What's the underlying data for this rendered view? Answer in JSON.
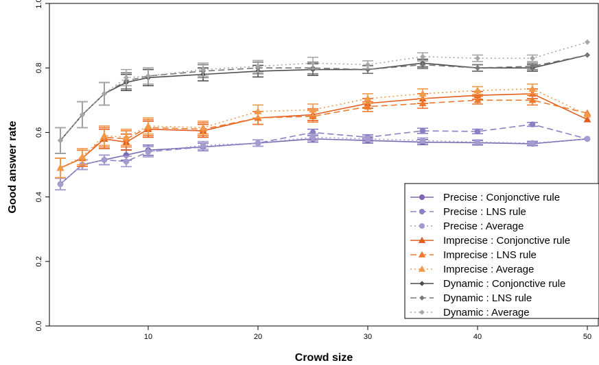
{
  "chart_data": {
    "type": "line",
    "title": "",
    "xlabel": "Crowd size",
    "ylabel": "Good answer rate",
    "xlim": [
      1,
      51
    ],
    "ylim": [
      0,
      1
    ],
    "x_ticks": [
      10,
      20,
      30,
      40,
      50
    ],
    "y_ticks": [
      0.0,
      0.2,
      0.4,
      0.6,
      0.8,
      1.0
    ],
    "y_tick_labels": [
      "0.0",
      "0.2",
      "0.4",
      "0.6",
      "0.8",
      "1.0"
    ],
    "grid": false,
    "legend_position": "bottom-right",
    "x": [
      2,
      4,
      6,
      8,
      10,
      15,
      20,
      25,
      30,
      35,
      40,
      45,
      50
    ],
    "series": [
      {
        "name": "Precise : Conjonctive rule",
        "color": "#7b68b0",
        "dash": "solid",
        "marker": "circle",
        "values": [
          0.44,
          0.5,
          0.515,
          0.53,
          0.545,
          0.555,
          0.567,
          0.58,
          0.575,
          0.57,
          0.568,
          0.565,
          0.58
        ],
        "errors": [
          0.018,
          0.015,
          0.015,
          0.016,
          0.016,
          0.012,
          0.01,
          0.01,
          0.008,
          0.008,
          0.007,
          0.006,
          0.0
        ]
      },
      {
        "name": "Precise : LNS rule",
        "color": "#8a80c4",
        "dash": "dashed",
        "marker": "circle",
        "values": [
          0.44,
          0.5,
          0.515,
          0.51,
          0.54,
          0.555,
          0.567,
          0.6,
          0.585,
          0.605,
          0.603,
          0.625,
          0.58
        ],
        "errors": [
          0.018,
          0.015,
          0.015,
          0.016,
          0.016,
          0.012,
          0.01,
          0.01,
          0.008,
          0.008,
          0.007,
          0.006,
          0.0
        ]
      },
      {
        "name": "Precise : Average",
        "color": "#a49ccf",
        "dash": "dotted",
        "marker": "circle",
        "values": [
          0.44,
          0.5,
          0.515,
          0.51,
          0.54,
          0.56,
          0.567,
          0.585,
          0.58,
          0.575,
          0.57,
          0.567,
          0.58
        ],
        "errors": [
          0.018,
          0.015,
          0.015,
          0.016,
          0.016,
          0.012,
          0.01,
          0.01,
          0.008,
          0.008,
          0.007,
          0.006,
          0.0
        ]
      },
      {
        "name": "Imprecise : Conjonctive rule",
        "color": "#e35d1e",
        "dash": "solid",
        "marker": "triangle",
        "values": [
          0.49,
          0.52,
          0.58,
          0.57,
          0.61,
          0.605,
          0.645,
          0.655,
          0.69,
          0.705,
          0.715,
          0.72,
          0.64
        ],
        "errors": [
          0.03,
          0.025,
          0.03,
          0.025,
          0.025,
          0.02,
          0.02,
          0.018,
          0.015,
          0.015,
          0.012,
          0.015,
          0.0
        ]
      },
      {
        "name": "Imprecise : LNS rule",
        "color": "#ee7a2e",
        "dash": "dashed",
        "marker": "triangle",
        "values": [
          0.49,
          0.52,
          0.585,
          0.58,
          0.615,
          0.61,
          0.645,
          0.65,
          0.68,
          0.69,
          0.7,
          0.7,
          0.66
        ],
        "errors": [
          0.03,
          0.025,
          0.03,
          0.025,
          0.025,
          0.02,
          0.02,
          0.018,
          0.015,
          0.015,
          0.012,
          0.015,
          0.0
        ]
      },
      {
        "name": "Imprecise : Average",
        "color": "#f39a4a",
        "dash": "dotted",
        "marker": "triangle",
        "values": [
          0.49,
          0.525,
          0.59,
          0.585,
          0.62,
          0.615,
          0.665,
          0.67,
          0.705,
          0.72,
          0.73,
          0.735,
          0.655
        ],
        "errors": [
          0.03,
          0.025,
          0.03,
          0.025,
          0.025,
          0.02,
          0.02,
          0.018,
          0.015,
          0.015,
          0.012,
          0.015,
          0.0
        ]
      },
      {
        "name": "Dynamic : Conjonctive rule",
        "color": "#4d4d4d",
        "dash": "solid",
        "marker": "diamond",
        "values": [
          0.575,
          0.655,
          0.72,
          0.755,
          0.77,
          0.78,
          0.79,
          0.795,
          0.795,
          0.815,
          0.8,
          0.8,
          0.84
        ],
        "errors": [
          0.04,
          0.04,
          0.035,
          0.025,
          0.025,
          0.02,
          0.018,
          0.018,
          0.012,
          0.012,
          0.01,
          0.01,
          0.0
        ]
      },
      {
        "name": "Dynamic : LNS rule",
        "color": "#777777",
        "dash": "dashed",
        "marker": "diamond",
        "values": [
          0.575,
          0.655,
          0.72,
          0.76,
          0.775,
          0.79,
          0.8,
          0.8,
          0.795,
          0.81,
          0.8,
          0.805,
          0.84
        ],
        "errors": [
          0.04,
          0.04,
          0.035,
          0.025,
          0.025,
          0.02,
          0.018,
          0.018,
          0.012,
          0.012,
          0.01,
          0.01,
          0.0
        ]
      },
      {
        "name": "Dynamic : Average",
        "color": "#a6a6a6",
        "dash": "dotted",
        "marker": "diamond",
        "values": [
          0.575,
          0.655,
          0.72,
          0.77,
          0.775,
          0.795,
          0.805,
          0.815,
          0.81,
          0.835,
          0.83,
          0.83,
          0.88
        ],
        "errors": [
          0.04,
          0.04,
          0.035,
          0.025,
          0.025,
          0.02,
          0.018,
          0.018,
          0.012,
          0.012,
          0.01,
          0.01,
          0.0
        ]
      }
    ]
  }
}
